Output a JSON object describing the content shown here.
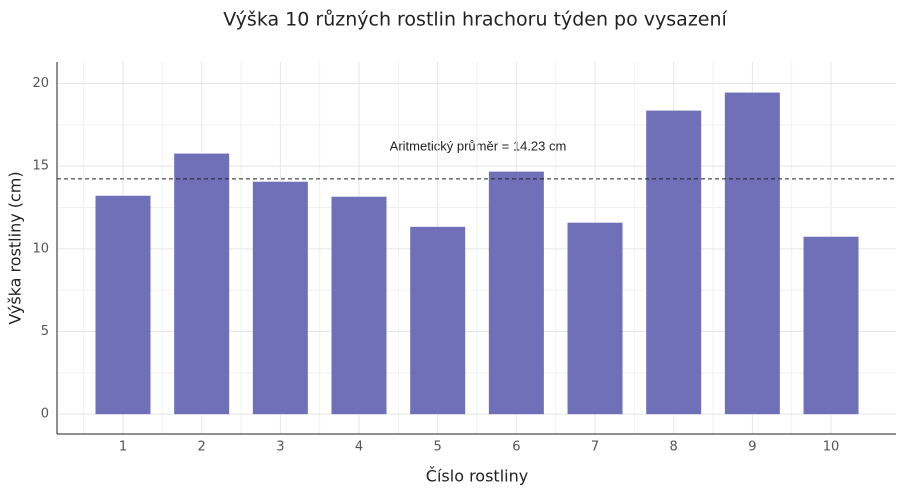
{
  "chart_data": {
    "type": "bar",
    "title": "Výška 10 různých rostlin hrachoru týden po vysazení",
    "xlabel": "Číslo rostliny",
    "ylabel": "Výška rostliny (cm)",
    "categories": [
      "1",
      "2",
      "3",
      "4",
      "5",
      "6",
      "7",
      "8",
      "9",
      "10"
    ],
    "values": [
      13.21,
      15.76,
      14.06,
      13.15,
      11.33,
      14.67,
      11.58,
      18.36,
      19.45,
      10.73
    ],
    "color": "#6f70b8",
    "ylim": [
      -1.2,
      21.3
    ],
    "yticks": [
      0,
      5,
      10,
      15,
      20
    ],
    "grid": true,
    "mean": 14.23,
    "annotation": "Aritmetický průměr = 14.23 cm"
  }
}
